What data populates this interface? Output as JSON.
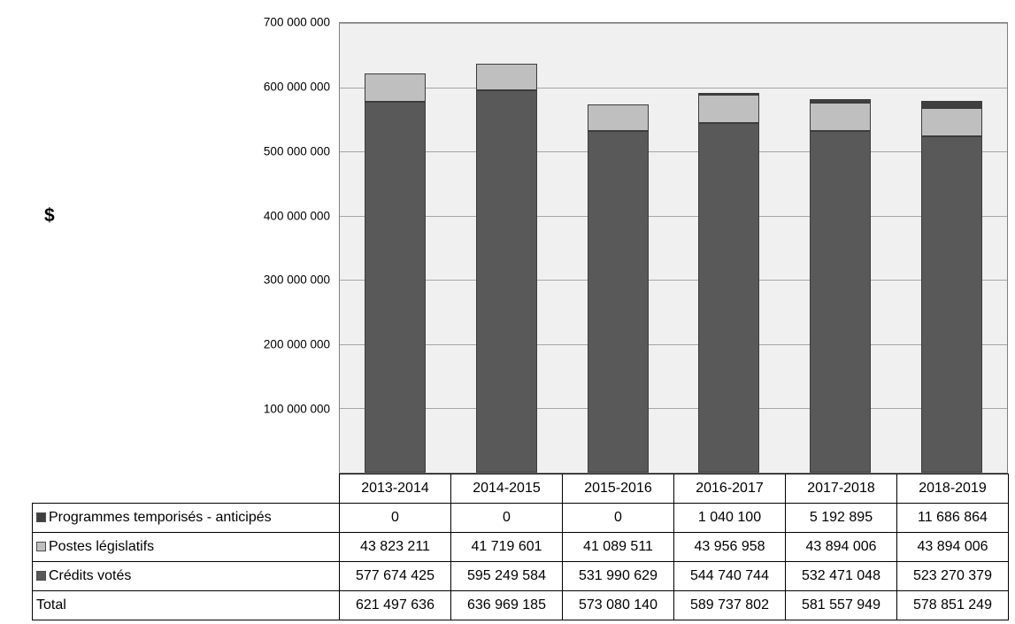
{
  "chart_data": {
    "type": "bar",
    "stacked": true,
    "title": "",
    "ylabel": "$",
    "xlabel": "",
    "ylim": [
      0,
      700000000
    ],
    "grid": true,
    "legend_position": "table-left",
    "y_ticks": [
      "700 000 000",
      "600 000 000",
      "500 000 000",
      "400 000 000",
      "300 000 000",
      "200 000 000",
      "100 000 000"
    ],
    "categories": [
      "2013-2014",
      "2014-2015",
      "2015-2016",
      "2016-2017",
      "2017-2018",
      "2018-2019"
    ],
    "series": [
      {
        "name": "Programmes temporisés - anticipés",
        "color": "#3f3f3f",
        "values": [
          0,
          0,
          0,
          1040100,
          5192895,
          11686864
        ]
      },
      {
        "name": "Postes législatifs",
        "color": "#bfbfbf",
        "values": [
          43823211,
          41719601,
          41089511,
          43956958,
          43894006,
          43894006
        ]
      },
      {
        "name": "Crédits votés",
        "color": "#595959",
        "values": [
          577674425,
          595249584,
          531990629,
          544740744,
          532471048,
          523270379
        ]
      }
    ],
    "totals": {
      "label": "Total",
      "values": [
        621497636,
        636969185,
        573080140,
        589737802,
        581557949,
        578851249
      ]
    },
    "stack_order_bottom_to_top": [
      "Crédits votés",
      "Postes législatifs",
      "Programmes temporisés - anticipés"
    ]
  }
}
